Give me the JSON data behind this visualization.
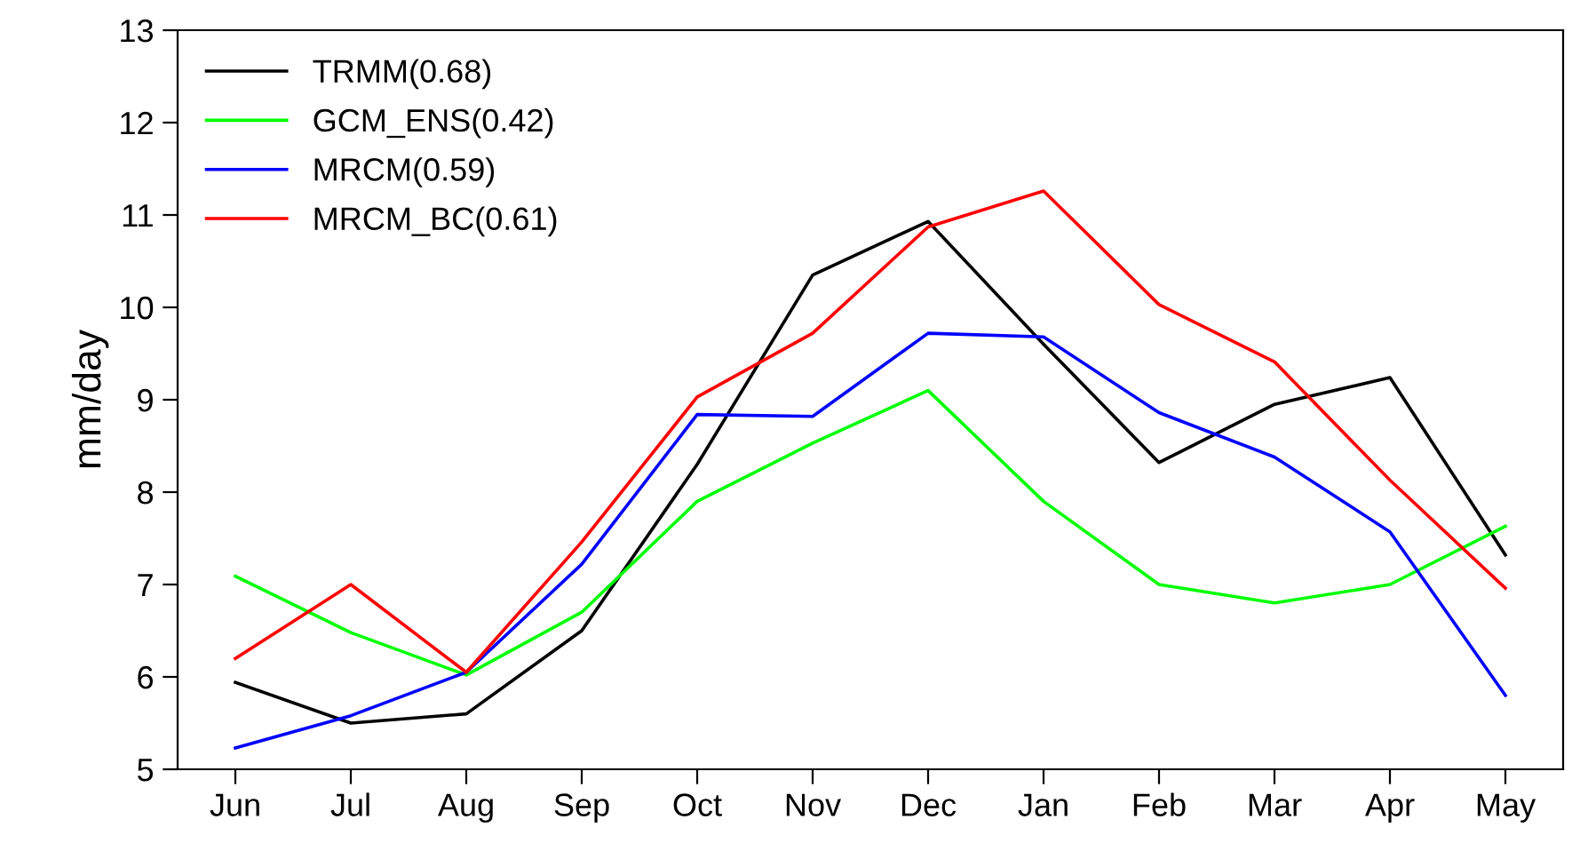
{
  "chart_data": {
    "type": "line",
    "ylabel": "mm/day",
    "categories": [
      "Jun",
      "Jul",
      "Aug",
      "Sep",
      "Oct",
      "Nov",
      "Dec",
      "Jan",
      "Feb",
      "Mar",
      "Apr",
      "May"
    ],
    "series": [
      {
        "name": "TRMM(0.68)",
        "color": "#000000",
        "values": [
          5.94,
          5.5,
          5.6,
          6.5,
          8.3,
          10.35,
          10.93,
          9.6,
          8.32,
          8.95,
          9.24,
          7.32
        ]
      },
      {
        "name": "GCM_ENS(0.42)",
        "color": "#00ff00",
        "values": [
          7.09,
          6.48,
          6.02,
          6.7,
          7.9,
          8.53,
          9.1,
          7.9,
          7.0,
          6.8,
          7.0,
          7.63
        ]
      },
      {
        "name": "MRCM(0.59)",
        "color": "#0000ff",
        "values": [
          5.23,
          5.58,
          6.05,
          7.22,
          8.84,
          8.82,
          9.72,
          9.68,
          8.86,
          8.38,
          7.57,
          5.8
        ]
      },
      {
        "name": "MRCM_BC(0.61)",
        "color": "#ff0000",
        "values": [
          6.2,
          7.0,
          6.05,
          7.46,
          9.03,
          9.72,
          10.87,
          11.26,
          10.03,
          9.41,
          8.13,
          6.96
        ]
      }
    ],
    "ylim": [
      5,
      13
    ],
    "yticks": [
      5,
      6,
      7,
      8,
      9,
      10,
      11,
      12,
      13
    ],
    "legend": "top left",
    "grid": false,
    "marker": "none",
    "line_style": "solid"
  }
}
